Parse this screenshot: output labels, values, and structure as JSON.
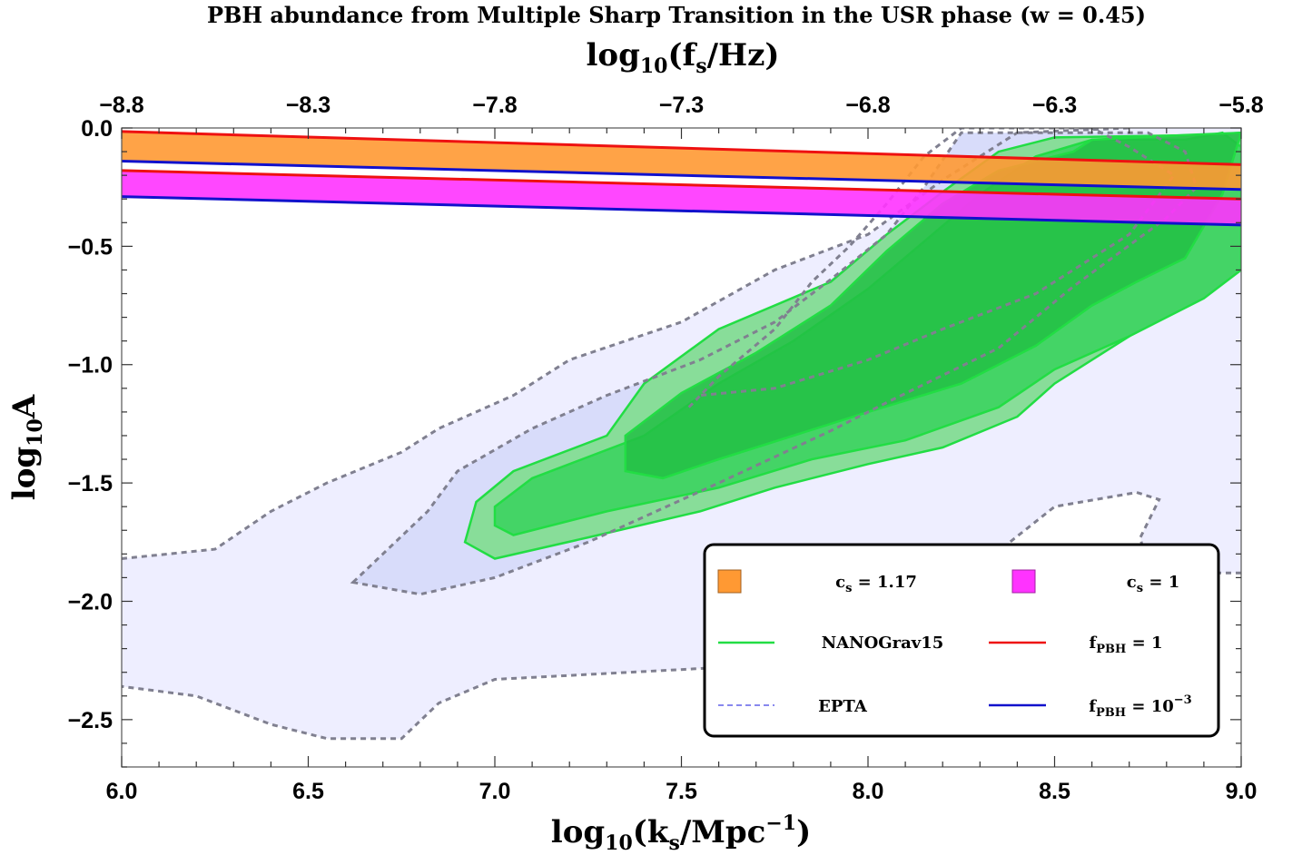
{
  "chart_data": {
    "type": "area",
    "title": "PBH abundance from Multiple Sharp Transition in the USR phase (w = 0.45)",
    "xlabel": "log10(ks/Mpc^-1)",
    "ylabel": "log10A",
    "top_xlabel": "log10(fs/Hz)",
    "xlim": [
      6.0,
      9.0
    ],
    "ylim": [
      -2.7,
      0.0
    ],
    "top_xlim": [
      -8.8,
      -5.8
    ],
    "x_ticks": [
      6.0,
      6.5,
      7.0,
      7.5,
      8.0,
      8.5,
      9.0
    ],
    "x_tick_labels": [
      "6.0",
      "6.5",
      "7.0",
      "7.5",
      "8.0",
      "8.5",
      "9.0"
    ],
    "y_ticks": [
      0.0,
      -0.5,
      -1.0,
      -1.5,
      -2.0,
      -2.5
    ],
    "y_tick_labels": [
      "0.0",
      "-0.5",
      "-1.0",
      "-1.5",
      "-2.0",
      "-2.5"
    ],
    "top_ticks": [
      -8.8,
      -8.3,
      -7.8,
      -7.3,
      -6.8,
      -6.3,
      -5.8
    ],
    "top_tick_labels": [
      "-8.8",
      "-8.3",
      "-7.8",
      "-7.3",
      "-6.8",
      "-6.3",
      "-5.8"
    ],
    "grid": false,
    "legend_position": "bottom-right",
    "colors": {
      "orange_band": "#ff9933",
      "magenta_band": "#ff33ff",
      "red_line": "#ee1111",
      "blue_line": "#1111cc",
      "nanograv_line": "#22dd44",
      "epta_outer": "#eeeeff",
      "epta_inner": "#d8dcfa",
      "epta_dash": "#808090",
      "ng_light": "#88dd99",
      "ng_mid": "#44d466",
      "ng_dark": "#22c044"
    },
    "bands": [
      {
        "cs": "1.17",
        "upper": {
          "x": [
            6.0,
            9.0
          ],
          "y": [
            -0.015,
            -0.155
          ]
        },
        "lower": {
          "x": [
            6.0,
            9.0
          ],
          "y": [
            -0.14,
            -0.26
          ]
        }
      },
      {
        "cs": "1",
        "upper": {
          "x": [
            6.0,
            9.0
          ],
          "y": [
            -0.18,
            -0.3
          ]
        },
        "lower": {
          "x": [
            6.0,
            9.0
          ],
          "y": [
            -0.29,
            -0.41
          ]
        }
      }
    ],
    "epta": {
      "outer_95": [
        [
          6.0,
          -1.82
        ],
        [
          6.25,
          -1.78
        ],
        [
          6.4,
          -1.62
        ],
        [
          6.55,
          -1.5
        ],
        [
          6.75,
          -1.37
        ],
        [
          6.85,
          -1.27
        ],
        [
          7.05,
          -1.13
        ],
        [
          7.2,
          -0.98
        ],
        [
          7.5,
          -0.82
        ],
        [
          7.75,
          -0.6
        ],
        [
          8.0,
          -0.45
        ],
        [
          8.2,
          -0.22
        ],
        [
          8.4,
          -0.02
        ],
        [
          8.7,
          0.0
        ],
        [
          9.0,
          0.0
        ],
        [
          9.0,
          -1.88
        ],
        [
          8.75,
          -1.88
        ],
        [
          8.73,
          -1.73
        ],
        [
          8.78,
          -1.57
        ],
        [
          8.72,
          -1.54
        ],
        [
          8.5,
          -1.6
        ],
        [
          8.3,
          -1.85
        ],
        [
          8.1,
          -2.05
        ],
        [
          7.95,
          -2.12
        ],
        [
          7.6,
          -2.28
        ],
        [
          7.0,
          -2.33
        ],
        [
          6.85,
          -2.43
        ],
        [
          6.75,
          -2.58
        ],
        [
          6.55,
          -2.58
        ],
        [
          6.4,
          -2.52
        ],
        [
          6.2,
          -2.4
        ],
        [
          6.0,
          -2.36
        ]
      ],
      "inner_68": [
        [
          6.62,
          -1.92
        ],
        [
          6.7,
          -1.8
        ],
        [
          6.82,
          -1.62
        ],
        [
          6.9,
          -1.45
        ],
        [
          7.1,
          -1.27
        ],
        [
          7.3,
          -1.13
        ],
        [
          7.55,
          -0.98
        ],
        [
          7.75,
          -0.82
        ],
        [
          7.9,
          -0.64
        ],
        [
          8.05,
          -0.45
        ],
        [
          8.15,
          -0.25
        ],
        [
          8.25,
          -0.02
        ],
        [
          8.45,
          -0.02
        ],
        [
          8.75,
          -0.02
        ],
        [
          8.85,
          -0.1
        ],
        [
          8.88,
          -0.25
        ],
        [
          8.8,
          -0.38
        ],
        [
          8.55,
          -0.67
        ],
        [
          8.35,
          -0.93
        ],
        [
          8.05,
          -1.16
        ],
        [
          7.9,
          -1.28
        ],
        [
          7.6,
          -1.5
        ],
        [
          7.25,
          -1.75
        ],
        [
          7.0,
          -1.9
        ],
        [
          6.8,
          -1.97
        ]
      ],
      "dashed_inner": [
        [
          7.52,
          -1.18
        ],
        [
          7.6,
          -1.05
        ],
        [
          7.75,
          -0.85
        ],
        [
          7.85,
          -0.65
        ],
        [
          7.95,
          -0.5
        ],
        [
          8.05,
          -0.32
        ],
        [
          8.15,
          -0.12
        ],
        [
          8.25,
          0.0
        ],
        [
          8.6,
          0.0
        ],
        [
          8.7,
          -0.08
        ],
        [
          8.82,
          -0.2
        ],
        [
          8.7,
          -0.45
        ],
        [
          8.45,
          -0.7
        ],
        [
          8.2,
          -0.85
        ],
        [
          8.0,
          -0.98
        ],
        [
          7.75,
          -1.1
        ],
        [
          7.55,
          -1.13
        ]
      ]
    },
    "nanograv": {
      "level_95": [
        [
          6.92,
          -1.75
        ],
        [
          6.95,
          -1.58
        ],
        [
          7.05,
          -1.45
        ],
        [
          7.3,
          -1.3
        ],
        [
          7.4,
          -1.08
        ],
        [
          7.6,
          -0.85
        ],
        [
          7.9,
          -0.65
        ],
        [
          8.05,
          -0.45
        ],
        [
          8.2,
          -0.27
        ],
        [
          8.35,
          -0.1
        ],
        [
          8.5,
          -0.04
        ],
        [
          8.9,
          -0.03
        ],
        [
          9.0,
          -0.02
        ],
        [
          9.0,
          -0.3
        ],
        [
          8.9,
          -0.48
        ],
        [
          8.8,
          -0.68
        ],
        [
          8.7,
          -0.88
        ],
        [
          8.5,
          -1.08
        ],
        [
          8.4,
          -1.22
        ],
        [
          8.2,
          -1.35
        ],
        [
          8.0,
          -1.42
        ],
        [
          7.75,
          -1.52
        ],
        [
          7.55,
          -1.62
        ],
        [
          7.25,
          -1.73
        ],
        [
          7.0,
          -1.82
        ]
      ],
      "level_68": [
        [
          7.0,
          -1.68
        ],
        [
          7.0,
          -1.6
        ],
        [
          7.1,
          -1.48
        ],
        [
          7.4,
          -1.3
        ],
        [
          7.6,
          -1.08
        ],
        [
          7.8,
          -0.9
        ],
        [
          8.0,
          -0.68
        ],
        [
          8.15,
          -0.48
        ],
        [
          8.3,
          -0.28
        ],
        [
          8.45,
          -0.12
        ],
        [
          8.6,
          -0.05
        ],
        [
          8.85,
          -0.05
        ],
        [
          8.95,
          -0.02
        ],
        [
          9.0,
          -0.08
        ],
        [
          9.0,
          -0.6
        ],
        [
          8.9,
          -0.72
        ],
        [
          8.7,
          -0.88
        ],
        [
          8.5,
          -1.02
        ],
        [
          8.35,
          -1.18
        ],
        [
          8.1,
          -1.32
        ],
        [
          7.85,
          -1.4
        ],
        [
          7.6,
          -1.52
        ],
        [
          7.3,
          -1.62
        ],
        [
          7.05,
          -1.72
        ]
      ],
      "level_inner": [
        [
          7.35,
          -1.45
        ],
        [
          7.35,
          -1.3
        ],
        [
          7.5,
          -1.12
        ],
        [
          7.7,
          -0.95
        ],
        [
          7.9,
          -0.75
        ],
        [
          8.05,
          -0.52
        ],
        [
          8.2,
          -0.32
        ],
        [
          8.35,
          -0.18
        ],
        [
          8.55,
          -0.1
        ],
        [
          8.6,
          -0.05
        ],
        [
          8.85,
          -0.03
        ],
        [
          9.0,
          -0.02
        ],
        [
          8.95,
          -0.28
        ],
        [
          8.85,
          -0.55
        ],
        [
          8.72,
          -0.65
        ],
        [
          8.6,
          -0.75
        ],
        [
          8.45,
          -0.92
        ],
        [
          8.25,
          -1.08
        ],
        [
          8.0,
          -1.2
        ],
        [
          7.8,
          -1.3
        ],
        [
          7.6,
          -1.4
        ],
        [
          7.45,
          -1.48
        ]
      ]
    },
    "legend": [
      {
        "marker": "orange-square",
        "label": "c_s = 1.17"
      },
      {
        "marker": "magenta-square",
        "label": "c_s = 1"
      },
      {
        "marker": "green-line",
        "label": "NANOGrav15"
      },
      {
        "marker": "red-line",
        "label": "f_PBH = 1"
      },
      {
        "marker": "dashed-line",
        "label": "EPTA"
      },
      {
        "marker": "blue-line",
        "label": "f_PBH = 10^-3"
      }
    ]
  }
}
